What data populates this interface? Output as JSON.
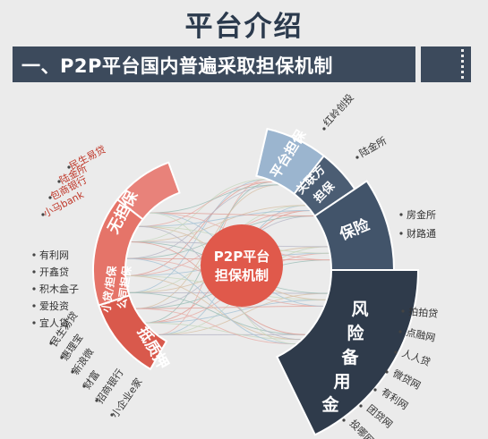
{
  "title": "平台介绍",
  "banner": "一、P2P平台国内普遍采取担保机制",
  "center": {
    "line1": "P2P平台",
    "line2": "担保机制"
  },
  "left_segments": [
    {
      "label": "无担保",
      "color": "#e8827a",
      "items": [
        "民生易贷",
        "陆金所",
        "包商银行",
        "小马bank"
      ]
    },
    {
      "label_line1": "小贷/担保",
      "label_line2": "公司担保",
      "color": "#e57469",
      "items": [
        "有利网",
        "开鑫贷",
        "积木盒子",
        "爱投资",
        "宜人贷"
      ]
    },
    {
      "label": "抵质押",
      "color": "#d9594c",
      "items": [
        "民生易贷",
        "惠理宝",
        "新浪微",
        "财富",
        "招商银行",
        "小企业e家"
      ]
    }
  ],
  "right_segments": [
    {
      "label": "平台担保",
      "color": "#9bb5cf",
      "items": [
        "红岭创投"
      ]
    },
    {
      "label_line1": "关联方",
      "label_line2": "担保",
      "color": "#4b5d73",
      "items": [
        "陆金所"
      ]
    },
    {
      "label": "保险",
      "color": "#42546a",
      "items": [
        "房金所",
        "财路通"
      ]
    },
    {
      "label_chars": [
        "风",
        "险",
        "备",
        "用",
        "金"
      ],
      "color": "#2f3b4b",
      "items": [
        "拍拍贷",
        "点融网",
        "人人贷",
        "微贷网",
        "有利网",
        "团贷网",
        "投哪网"
      ]
    }
  ]
}
